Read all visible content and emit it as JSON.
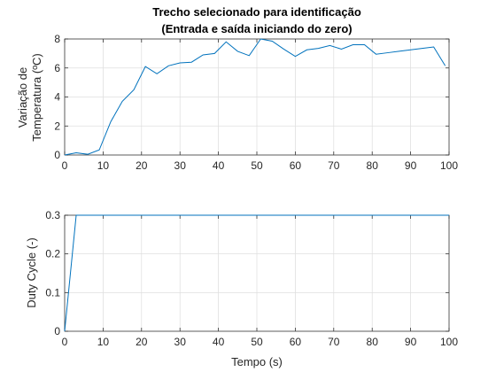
{
  "chart_data": [
    {
      "type": "line",
      "title": "Trecho selecionado para identificação",
      "subtitle": "(Entrada e saída iniciando do zero)",
      "xlabel": "",
      "ylabel": "Variação de",
      "ylabel2": "Temperatura (ºC)",
      "xlim": [
        0,
        100
      ],
      "ylim": [
        0,
        8
      ],
      "xticks": [
        0,
        10,
        20,
        30,
        40,
        50,
        60,
        70,
        80,
        90,
        100
      ],
      "yticks": [
        0,
        2,
        4,
        6,
        8
      ],
      "xtick_labels": [
        "0",
        "10",
        "20",
        "30",
        "40",
        "50",
        "60",
        "70",
        "80",
        "90",
        "100"
      ],
      "ytick_labels": [
        "0",
        "2",
        "4",
        "6",
        "8"
      ],
      "grid": true,
      "series": [
        {
          "color": "#0072bd",
          "x": [
            0,
            3,
            6,
            9,
            12,
            15,
            18,
            21,
            24,
            27,
            30,
            33,
            36,
            39,
            42,
            45,
            48,
            51,
            54,
            57,
            60,
            63,
            66,
            69,
            72,
            75,
            78,
            81,
            84,
            87,
            90,
            93,
            96,
            99
          ],
          "y": [
            0,
            0.15,
            0.05,
            0.35,
            2.3,
            3.7,
            4.5,
            6.1,
            5.6,
            6.15,
            6.35,
            6.4,
            6.9,
            7.0,
            7.8,
            7.15,
            6.85,
            8.0,
            7.85,
            7.3,
            6.8,
            7.25,
            7.35,
            7.55,
            7.3,
            7.6,
            7.6,
            6.95,
            7.05,
            7.15,
            7.25,
            7.35,
            7.45,
            6.15
          ]
        }
      ]
    },
    {
      "type": "line",
      "title": "",
      "xlabel": "Tempo (s)",
      "ylabel": "Duty Cycle (-)",
      "xlim": [
        0,
        100
      ],
      "ylim": [
        0,
        0.3
      ],
      "xticks": [
        0,
        10,
        20,
        30,
        40,
        50,
        60,
        70,
        80,
        90,
        100
      ],
      "yticks": [
        0,
        0.1,
        0.2,
        0.3
      ],
      "xtick_labels": [
        "0",
        "10",
        "20",
        "30",
        "40",
        "50",
        "60",
        "70",
        "80",
        "90",
        "100"
      ],
      "ytick_labels": [
        "0",
        "0.1",
        "0.2",
        "0.3"
      ],
      "grid": true,
      "series": [
        {
          "color": "#0072bd",
          "x": [
            0,
            3,
            100
          ],
          "y": [
            0,
            0.3,
            0.3
          ]
        }
      ]
    }
  ]
}
